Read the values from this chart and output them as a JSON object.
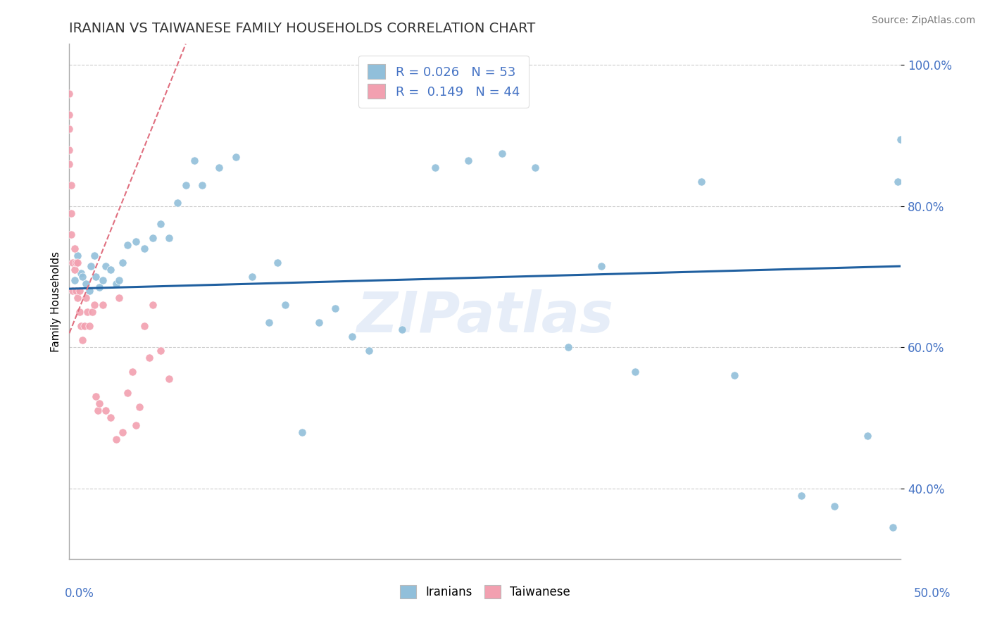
{
  "title": "IRANIAN VS TAIWANESE FAMILY HOUSEHOLDS CORRELATION CHART",
  "source": "Source: ZipAtlas.com",
  "ylabel": "Family Households",
  "watermark": "ZIPatlas",
  "xmin": 0.0,
  "xmax": 0.5,
  "ymin": 0.3,
  "ymax": 1.03,
  "yticks": [
    0.4,
    0.6,
    0.8,
    1.0
  ],
  "ytick_labels": [
    "40.0%",
    "60.0%",
    "80.0%",
    "100.0%"
  ],
  "iranians_color": "#91bfda",
  "taiwanese_color": "#f2a0b0",
  "trend_iranian_color": "#2060a0",
  "trend_taiwanese_color": "#e07080",
  "iranians_r": 0.026,
  "iranians_n": 53,
  "taiwanese_r": 0.149,
  "taiwanese_n": 44,
  "iranians_x": [
    0.003,
    0.005,
    0.007,
    0.008,
    0.01,
    0.012,
    0.013,
    0.015,
    0.016,
    0.018,
    0.02,
    0.022,
    0.025,
    0.028,
    0.03,
    0.032,
    0.035,
    0.04,
    0.045,
    0.05,
    0.055,
    0.06,
    0.065,
    0.07,
    0.075,
    0.08,
    0.09,
    0.1,
    0.11,
    0.12,
    0.125,
    0.13,
    0.14,
    0.15,
    0.16,
    0.17,
    0.18,
    0.2,
    0.22,
    0.24,
    0.26,
    0.28,
    0.3,
    0.32,
    0.34,
    0.38,
    0.4,
    0.44,
    0.46,
    0.48,
    0.5,
    0.498,
    0.495
  ],
  "iranians_y": [
    0.695,
    0.73,
    0.705,
    0.7,
    0.69,
    0.68,
    0.715,
    0.73,
    0.7,
    0.685,
    0.695,
    0.715,
    0.71,
    0.69,
    0.695,
    0.72,
    0.745,
    0.75,
    0.74,
    0.755,
    0.775,
    0.755,
    0.805,
    0.83,
    0.865,
    0.83,
    0.855,
    0.87,
    0.7,
    0.635,
    0.72,
    0.66,
    0.48,
    0.635,
    0.655,
    0.615,
    0.595,
    0.625,
    0.855,
    0.865,
    0.875,
    0.855,
    0.6,
    0.715,
    0.565,
    0.835,
    0.56,
    0.39,
    0.375,
    0.475,
    0.895,
    0.835,
    0.345
  ],
  "taiwanese_x": [
    0.0,
    0.0,
    0.0,
    0.0,
    0.0,
    0.001,
    0.001,
    0.001,
    0.002,
    0.002,
    0.003,
    0.003,
    0.004,
    0.004,
    0.005,
    0.005,
    0.006,
    0.006,
    0.007,
    0.008,
    0.009,
    0.01,
    0.011,
    0.012,
    0.014,
    0.015,
    0.016,
    0.017,
    0.018,
    0.02,
    0.022,
    0.025,
    0.028,
    0.03,
    0.032,
    0.035,
    0.038,
    0.04,
    0.042,
    0.045,
    0.048,
    0.05,
    0.055,
    0.06
  ],
  "taiwanese_y": [
    0.96,
    0.93,
    0.91,
    0.88,
    0.86,
    0.83,
    0.79,
    0.76,
    0.72,
    0.68,
    0.74,
    0.71,
    0.72,
    0.68,
    0.72,
    0.67,
    0.68,
    0.65,
    0.63,
    0.61,
    0.63,
    0.67,
    0.65,
    0.63,
    0.65,
    0.66,
    0.53,
    0.51,
    0.52,
    0.66,
    0.51,
    0.5,
    0.47,
    0.67,
    0.48,
    0.535,
    0.565,
    0.49,
    0.515,
    0.63,
    0.585,
    0.66,
    0.595,
    0.555
  ],
  "trend_ir_x0": 0.0,
  "trend_ir_x1": 0.5,
  "trend_ir_y0": 0.683,
  "trend_ir_y1": 0.715,
  "trend_tw_x0": 0.0,
  "trend_tw_x1": 0.07,
  "trend_tw_y0": 0.62,
  "trend_tw_y1": 1.03
}
